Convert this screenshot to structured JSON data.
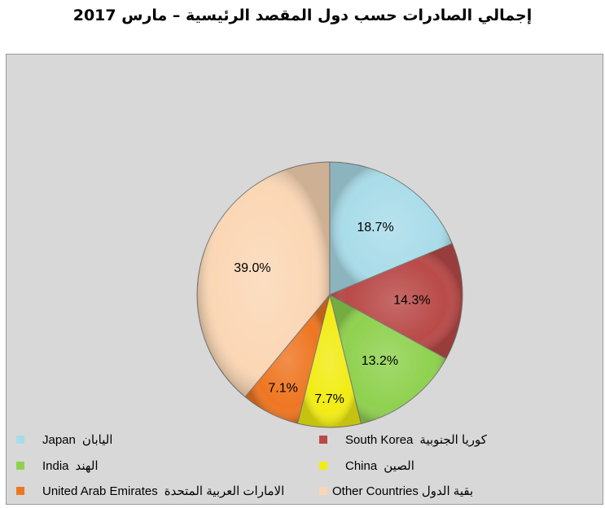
{
  "chart_data": {
    "type": "pie",
    "title": "إجمالي الصادرات حسب دول المقصد الرئيسية – مارس 2017",
    "unit": "%",
    "slices": [
      {
        "label_en": "Japan",
        "label_ar": "اليابان",
        "value": 18.7,
        "label_text": "18.7%",
        "color": "#a9dce9"
      },
      {
        "label_en": "South Korea",
        "label_ar": "كوريا الجنوبية",
        "value": 14.3,
        "label_text": "14.3%",
        "color": "#b94a48"
      },
      {
        "label_en": "India",
        "label_ar": "الهند",
        "value": 13.2,
        "label_text": "13.2%",
        "color": "#8fd14f"
      },
      {
        "label_en": "China",
        "label_ar": "الصين",
        "value": 7.7,
        "label_text": "7.7%",
        "color": "#f2ec14"
      },
      {
        "label_en": "United Arab Emirates",
        "label_ar": "الامارات العربية المتحدة",
        "value": 7.1,
        "label_text": "7.1%",
        "color": "#ee7622"
      },
      {
        "label_en": "Other Countries",
        "label_ar": "بقية الدول",
        "value": 39.0,
        "label_text": "39.0%",
        "color": "#fbd7b5"
      }
    ],
    "legend": [
      {
        "en": "Japan",
        "ar": "اليابان"
      },
      {
        "en": "South Korea",
        "ar": "كوريا الجنوبية"
      },
      {
        "en": "India",
        "ar": "الهند"
      },
      {
        "en": "China",
        "ar": "الصين"
      },
      {
        "en": "United Arab Emirates",
        "ar": "الامارات العربية المتحدة"
      },
      {
        "en": "Other Countries",
        "ar": "بقية الدول"
      }
    ],
    "legend_placement": "bottom"
  }
}
